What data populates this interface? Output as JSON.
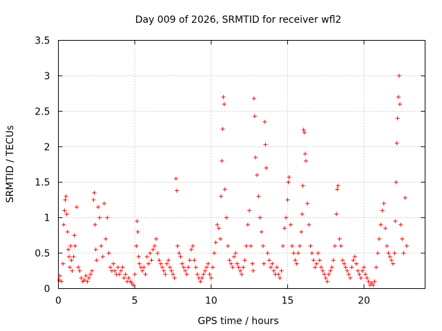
{
  "chart_data": {
    "type": "scatter",
    "title": "Day 009 of 2026, SRMTID for receiver wfl2",
    "xlabel": "GPS time / hours",
    "ylabel": "SRMTID / TECUs",
    "xlim": [
      0,
      24
    ],
    "ylim": [
      0,
      3.5
    ],
    "x_ticks": [
      0,
      5,
      10,
      15,
      20
    ],
    "y_ticks": [
      0,
      0.5,
      1,
      1.5,
      2,
      2.5,
      3,
      3.5
    ],
    "y_tick_labels": [
      "0",
      "0.5",
      "1",
      "1.5",
      "2",
      "2.5",
      "3",
      "3.5"
    ],
    "grid": true,
    "marker": "plus",
    "color": "#ff0000",
    "series": [
      {
        "name": "SRMTID",
        "x": [
          0.05,
          0.1,
          0.2,
          0.3,
          0.35,
          0.4,
          0.45,
          0.5,
          0.55,
          0.6,
          0.65,
          0.7,
          0.75,
          0.8,
          0.85,
          0.9,
          1.0,
          1.05,
          1.1,
          1.2,
          1.3,
          1.4,
          1.5,
          1.6,
          1.7,
          1.8,
          1.9,
          2.0,
          2.1,
          2.2,
          2.3,
          2.35,
          2.4,
          2.45,
          2.5,
          2.6,
          2.7,
          2.8,
          2.9,
          3.0,
          3.1,
          3.2,
          3.3,
          3.4,
          3.5,
          3.6,
          3.7,
          3.8,
          3.9,
          4.0,
          4.1,
          4.2,
          4.3,
          4.4,
          4.5,
          4.6,
          4.7,
          4.8,
          4.9,
          5.0,
          5.1,
          5.15,
          5.2,
          5.25,
          5.3,
          5.4,
          5.5,
          5.6,
          5.7,
          5.8,
          5.9,
          6.0,
          6.1,
          6.2,
          6.3,
          6.4,
          6.5,
          6.6,
          6.7,
          6.8,
          6.9,
          7.0,
          7.1,
          7.2,
          7.3,
          7.4,
          7.5,
          7.6,
          7.7,
          7.75,
          7.8,
          7.9,
          8.0,
          8.1,
          8.2,
          8.3,
          8.4,
          8.5,
          8.6,
          8.7,
          8.8,
          8.9,
          9.0,
          9.1,
          9.2,
          9.3,
          9.4,
          9.5,
          9.6,
          9.7,
          9.8,
          9.9,
          10.0,
          10.1,
          10.2,
          10.3,
          10.4,
          10.5,
          10.6,
          10.65,
          10.7,
          10.75,
          10.8,
          10.85,
          10.9,
          11.0,
          11.1,
          11.2,
          11.3,
          11.4,
          11.5,
          11.6,
          11.7,
          11.8,
          11.9,
          12.0,
          12.1,
          12.2,
          12.3,
          12.4,
          12.5,
          12.6,
          12.7,
          12.75,
          12.8,
          12.85,
          12.9,
          13.0,
          13.1,
          13.2,
          13.3,
          13.4,
          13.45,
          13.5,
          13.55,
          13.6,
          13.7,
          13.8,
          13.9,
          14.0,
          14.1,
          14.2,
          14.3,
          14.4,
          14.5,
          14.6,
          14.7,
          14.8,
          14.9,
          15.0,
          15.05,
          15.1,
          15.2,
          15.3,
          15.4,
          15.5,
          15.6,
          15.7,
          15.8,
          15.9,
          15.95,
          16.0,
          16.05,
          16.1,
          16.15,
          16.2,
          16.3,
          16.4,
          16.5,
          16.6,
          16.7,
          16.8,
          16.9,
          17.0,
          17.1,
          17.2,
          17.3,
          17.4,
          17.5,
          17.6,
          17.7,
          17.8,
          17.9,
          18.0,
          18.1,
          18.2,
          18.25,
          18.3,
          18.4,
          18.5,
          18.6,
          18.7,
          18.8,
          18.9,
          19.0,
          19.1,
          19.2,
          19.3,
          19.4,
          19.5,
          19.6,
          19.7,
          19.8,
          19.9,
          20.0,
          20.1,
          20.2,
          20.3,
          20.4,
          20.5,
          20.6,
          20.7,
          20.8,
          20.9,
          21.0,
          21.1,
          21.2,
          21.3,
          21.4,
          21.5,
          21.6,
          21.7,
          21.8,
          21.9,
          22.0,
          22.05,
          22.1,
          22.15,
          22.2,
          22.25,
          22.3,
          22.35,
          22.4,
          22.5,
          22.6,
          22.7,
          22.8
        ],
        "y": [
          0.12,
          0.18,
          0.1,
          0.35,
          0.9,
          1.1,
          1.25,
          1.3,
          1.05,
          0.8,
          0.55,
          0.45,
          0.3,
          0.6,
          0.4,
          0.25,
          0.45,
          0.75,
          0.6,
          1.15,
          0.3,
          0.25,
          0.15,
          0.1,
          0.12,
          0.18,
          0.1,
          0.15,
          0.2,
          0.25,
          1.25,
          1.35,
          0.9,
          0.55,
          0.4,
          1.15,
          1.0,
          0.6,
          0.45,
          1.2,
          0.7,
          1.0,
          0.5,
          0.3,
          0.25,
          0.35,
          0.25,
          0.2,
          0.3,
          0.2,
          0.25,
          0.3,
          0.15,
          0.2,
          0.1,
          0.15,
          0.1,
          0.08,
          0.05,
          0.2,
          0.6,
          0.95,
          0.8,
          0.45,
          0.35,
          0.3,
          0.25,
          0.3,
          0.2,
          0.45,
          0.35,
          0.5,
          0.4,
          0.55,
          0.6,
          0.7,
          0.5,
          0.4,
          0.35,
          0.3,
          0.25,
          0.2,
          0.35,
          0.4,
          0.3,
          0.25,
          0.2,
          0.15,
          1.55,
          1.38,
          0.6,
          0.5,
          0.45,
          0.35,
          0.3,
          0.25,
          0.2,
          0.3,
          0.4,
          0.55,
          0.6,
          0.4,
          0.3,
          0.2,
          0.15,
          0.1,
          0.15,
          0.2,
          0.25,
          0.3,
          0.35,
          0.2,
          0.15,
          0.3,
          0.5,
          0.65,
          0.9,
          0.85,
          0.7,
          1.3,
          1.8,
          2.25,
          2.7,
          2.6,
          1.4,
          1.0,
          0.6,
          0.4,
          0.35,
          0.3,
          0.45,
          0.5,
          0.35,
          0.3,
          0.25,
          0.2,
          0.3,
          0.4,
          0.6,
          0.9,
          1.1,
          0.6,
          0.35,
          0.25,
          2.68,
          2.43,
          1.85,
          1.6,
          1.3,
          1.0,
          0.8,
          0.6,
          0.35,
          2.35,
          2.03,
          1.7,
          0.5,
          0.4,
          0.3,
          0.35,
          0.25,
          0.2,
          0.3,
          0.2,
          0.15,
          0.25,
          0.6,
          0.85,
          1.0,
          1.25,
          1.5,
          1.57,
          0.9,
          0.6,
          0.5,
          0.4,
          0.35,
          0.5,
          0.6,
          0.8,
          1.05,
          1.45,
          2.24,
          2.2,
          1.9,
          1.8,
          1.2,
          0.9,
          0.6,
          0.5,
          0.4,
          0.3,
          0.35,
          0.5,
          0.4,
          0.3,
          0.25,
          0.2,
          0.15,
          0.1,
          0.2,
          0.25,
          0.3,
          0.4,
          0.6,
          1.05,
          1.4,
          1.45,
          0.7,
          0.6,
          0.4,
          0.35,
          0.3,
          0.25,
          0.2,
          0.15,
          0.3,
          0.4,
          0.45,
          0.35,
          0.25,
          0.2,
          0.15,
          0.25,
          0.3,
          0.2,
          0.15,
          0.1,
          0.05,
          0.08,
          0.05,
          0.1,
          0.3,
          0.5,
          0.7,
          0.9,
          1.1,
          1.2,
          0.85,
          0.6,
          0.5,
          0.45,
          0.4,
          0.35,
          0.5,
          0.95,
          1.5,
          2.05,
          2.4,
          2.7,
          3.0,
          2.6,
          0.9,
          0.7,
          0.5,
          1.28,
          0.6
        ]
      }
    ]
  }
}
